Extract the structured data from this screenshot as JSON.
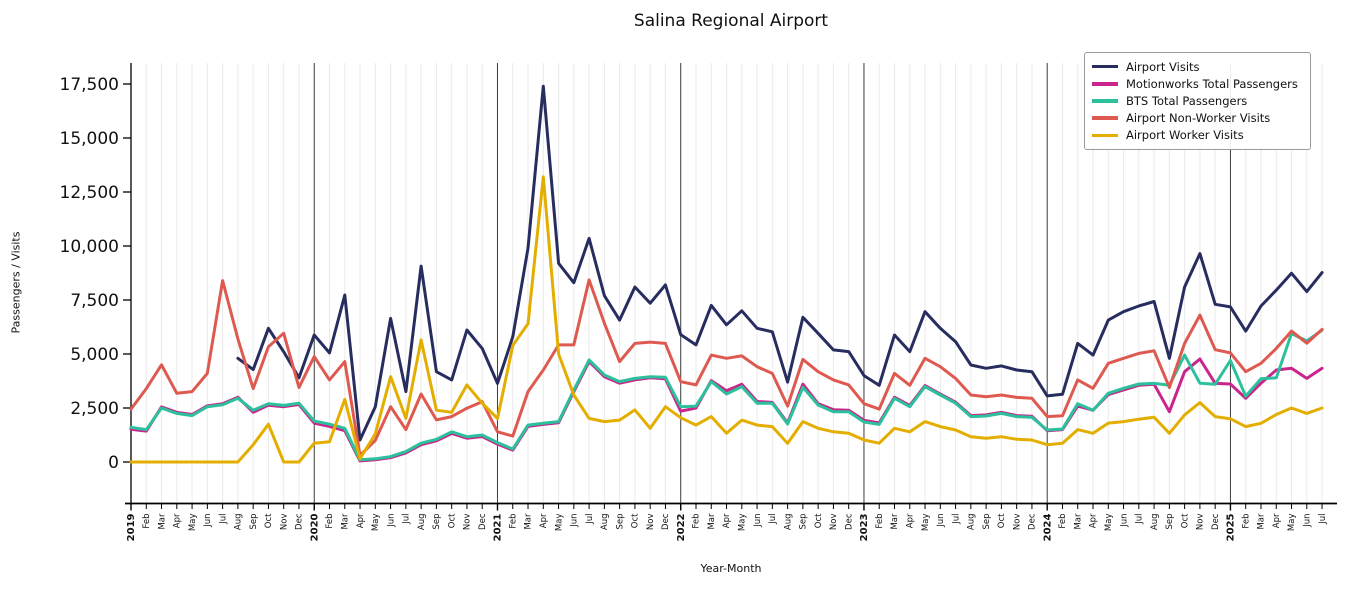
{
  "chart_data": {
    "type": "line",
    "title": "Salina Regional Airport",
    "xlabel": "Year-Month",
    "ylabel": "Passengers / Visits",
    "legend_position": "upper right",
    "grid": "vertical gridline at every month, dark vertical line at each year boundary, no horizontal gridlines",
    "ylim": [
      -1900,
      18450
    ],
    "yticks": [
      0,
      2500,
      5000,
      7500,
      10000,
      12500,
      15000,
      17500
    ],
    "ytick_labels": [
      "0",
      "2,500",
      "5,000",
      "7,500",
      "10,000",
      "12,500",
      "15,000",
      "17,500"
    ],
    "x_labels": [
      "2019",
      "Feb",
      "Mar",
      "Apr",
      "May",
      "Jun",
      "Jul",
      "Aug",
      "Sep",
      "Oct",
      "Nov",
      "Dec",
      "2020",
      "Feb",
      "Mar",
      "Apr",
      "May",
      "Jun",
      "Jul",
      "Aug",
      "Sep",
      "Oct",
      "Nov",
      "Dec",
      "2021",
      "Feb",
      "Mar",
      "Apr",
      "May",
      "Jun",
      "Jul",
      "Aug",
      "Sep",
      "Oct",
      "Nov",
      "Dec",
      "2022",
      "Feb",
      "Mar",
      "Apr",
      "May",
      "Jun",
      "Jul",
      "Aug",
      "Sep",
      "Oct",
      "Nov",
      "Dec",
      "2023",
      "Feb",
      "Mar",
      "Apr",
      "May",
      "Jun",
      "Jul",
      "Aug",
      "Sep",
      "Oct",
      "Nov",
      "Dec",
      "2024",
      "Feb",
      "Mar",
      "Apr",
      "May",
      "Jun",
      "Jul",
      "Aug",
      "Sep",
      "Oct",
      "Nov",
      "Dec",
      "2025",
      "Feb",
      "Mar",
      "Apr",
      "May",
      "Jun",
      "Jul"
    ],
    "series": [
      {
        "name": "Airport Visits",
        "color": "#282d5f",
        "values": [
          null,
          null,
          null,
          null,
          null,
          null,
          null,
          4800,
          4280,
          6190,
          5100,
          3900,
          5880,
          5050,
          7730,
          1020,
          2560,
          6650,
          3260,
          9070,
          4180,
          3800,
          6110,
          5260,
          3640,
          5800,
          9900,
          17400,
          9200,
          8300,
          10350,
          7700,
          6570,
          8100,
          7350,
          8200,
          5900,
          5420,
          7250,
          6350,
          7000,
          6190,
          6030,
          3700,
          6700,
          5960,
          5190,
          5110,
          4000,
          3550,
          5880,
          5110,
          6960,
          6190,
          5570,
          4490,
          4340,
          4450,
          4260,
          4180,
          3060,
          3140,
          5490,
          4950,
          6570,
          6960,
          7220,
          7430,
          4800,
          8100,
          9650,
          7300,
          7180,
          6060,
          7220,
          7960,
          8740,
          7890,
          8770
        ]
      },
      {
        "name": "Motionworks Total Passengers",
        "color": "#c9258c",
        "values": [
          1520,
          1430,
          2550,
          2300,
          2200,
          2600,
          2700,
          3000,
          2300,
          2630,
          2560,
          2660,
          1800,
          1650,
          1450,
          50,
          100,
          200,
          420,
          800,
          980,
          1320,
          1100,
          1180,
          830,
          550,
          1650,
          1740,
          1820,
          3260,
          4650,
          3950,
          3650,
          3800,
          3900,
          3850,
          2350,
          2500,
          3770,
          3300,
          3600,
          2800,
          2760,
          1810,
          3600,
          2700,
          2420,
          2400,
          1930,
          1810,
          3000,
          2620,
          3540,
          3150,
          2770,
          2150,
          2180,
          2300,
          2150,
          2120,
          1450,
          1500,
          2590,
          2400,
          3120,
          3340,
          3550,
          3600,
          2330,
          4180,
          4770,
          3640,
          3610,
          2950,
          3650,
          4260,
          4340,
          3870,
          4340
        ]
      },
      {
        "name": "BTS Total Passengers",
        "color": "#2cc09c",
        "values": [
          1600,
          1500,
          2500,
          2250,
          2150,
          2560,
          2650,
          2950,
          2400,
          2700,
          2620,
          2720,
          1900,
          1750,
          1560,
          100,
          150,
          250,
          480,
          870,
          1050,
          1400,
          1170,
          1250,
          900,
          600,
          1710,
          1790,
          1870,
          3330,
          4720,
          4030,
          3720,
          3870,
          3950,
          3920,
          2560,
          2590,
          3720,
          3150,
          3490,
          2720,
          2720,
          1760,
          3460,
          2640,
          2330,
          2330,
          1850,
          1740,
          2950,
          2560,
          3490,
          3100,
          2720,
          2100,
          2130,
          2250,
          2100,
          2070,
          1480,
          1530,
          2700,
          2400,
          3180,
          3410,
          3610,
          3640,
          3550,
          4950,
          3650,
          3600,
          4700,
          3050,
          3850,
          3900,
          5950,
          5600,
          6100
        ]
      },
      {
        "name": "Airport Non-Worker Visits",
        "color": "#de5a50",
        "values": [
          2450,
          3400,
          4500,
          3180,
          3260,
          4100,
          8400,
          5700,
          3400,
          5340,
          5960,
          3450,
          4880,
          3800,
          4650,
          300,
          1000,
          2560,
          1500,
          3150,
          1950,
          2100,
          2490,
          2790,
          1400,
          1200,
          3260,
          4260,
          5420,
          5420,
          8430,
          6420,
          4650,
          5490,
          5550,
          5490,
          3720,
          3570,
          4950,
          4800,
          4910,
          4410,
          4100,
          2590,
          4750,
          4180,
          3800,
          3570,
          2700,
          2450,
          4100,
          3550,
          4800,
          4410,
          3870,
          3100,
          3020,
          3100,
          2990,
          2950,
          2100,
          2140,
          3800,
          3410,
          4570,
          4800,
          5030,
          5150,
          3450,
          5490,
          6800,
          5200,
          5050,
          4180,
          4570,
          5260,
          6060,
          5500,
          6140
        ]
      },
      {
        "name": "Airport Worker Visits",
        "color": "#e4ae01",
        "values": [
          0,
          0,
          0,
          0,
          0,
          0,
          0,
          0,
          800,
          1750,
          0,
          0,
          870,
          940,
          2900,
          150,
          1300,
          3950,
          2020,
          5650,
          2400,
          2300,
          3570,
          2720,
          2020,
          5400,
          6400,
          13200,
          5000,
          3100,
          2020,
          1870,
          1940,
          2410,
          1560,
          2560,
          2050,
          1710,
          2100,
          1330,
          1940,
          1710,
          1640,
          860,
          1870,
          1560,
          1400,
          1330,
          1020,
          870,
          1560,
          1400,
          1870,
          1640,
          1480,
          1170,
          1100,
          1170,
          1050,
          1020,
          800,
          870,
          1500,
          1330,
          1800,
          1870,
          1980,
          2070,
          1330,
          2180,
          2750,
          2100,
          2000,
          1640,
          1790,
          2200,
          2500,
          2250,
          2500
        ]
      }
    ]
  }
}
